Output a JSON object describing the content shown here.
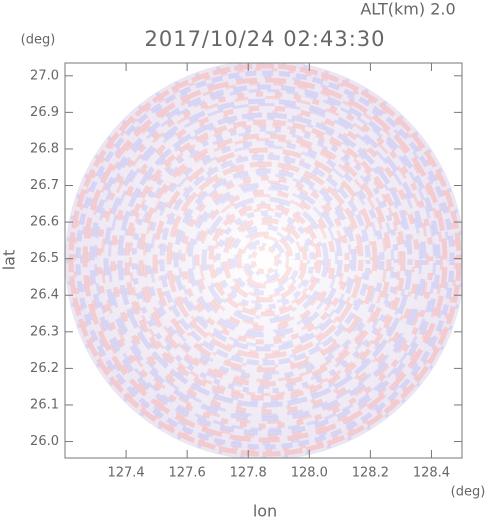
{
  "chart_data": {
    "type": "radar-ppi",
    "title": "2017/10/24 02:43:30",
    "annotation": "ALT(km) 2.0",
    "x_label": "lon",
    "x_unit": "(deg)",
    "y_label": "lat",
    "y_unit": "(deg)",
    "xlim": [
      127.2,
      128.5
    ],
    "xticks": [
      127.4,
      127.6,
      127.8,
      {
        "value": 128,
        "label": "128.0"
      },
      128.2,
      128.4
    ],
    "ylim": [
      25.955,
      27.035
    ],
    "yticks": [
      {
        "value": 26,
        "label": "26.0"
      },
      26.1,
      26.2,
      26.3,
      26.4,
      26.5,
      26.6,
      26.7,
      26.8,
      26.9,
      {
        "value": 27,
        "label": "27.0"
      }
    ]
  }
}
